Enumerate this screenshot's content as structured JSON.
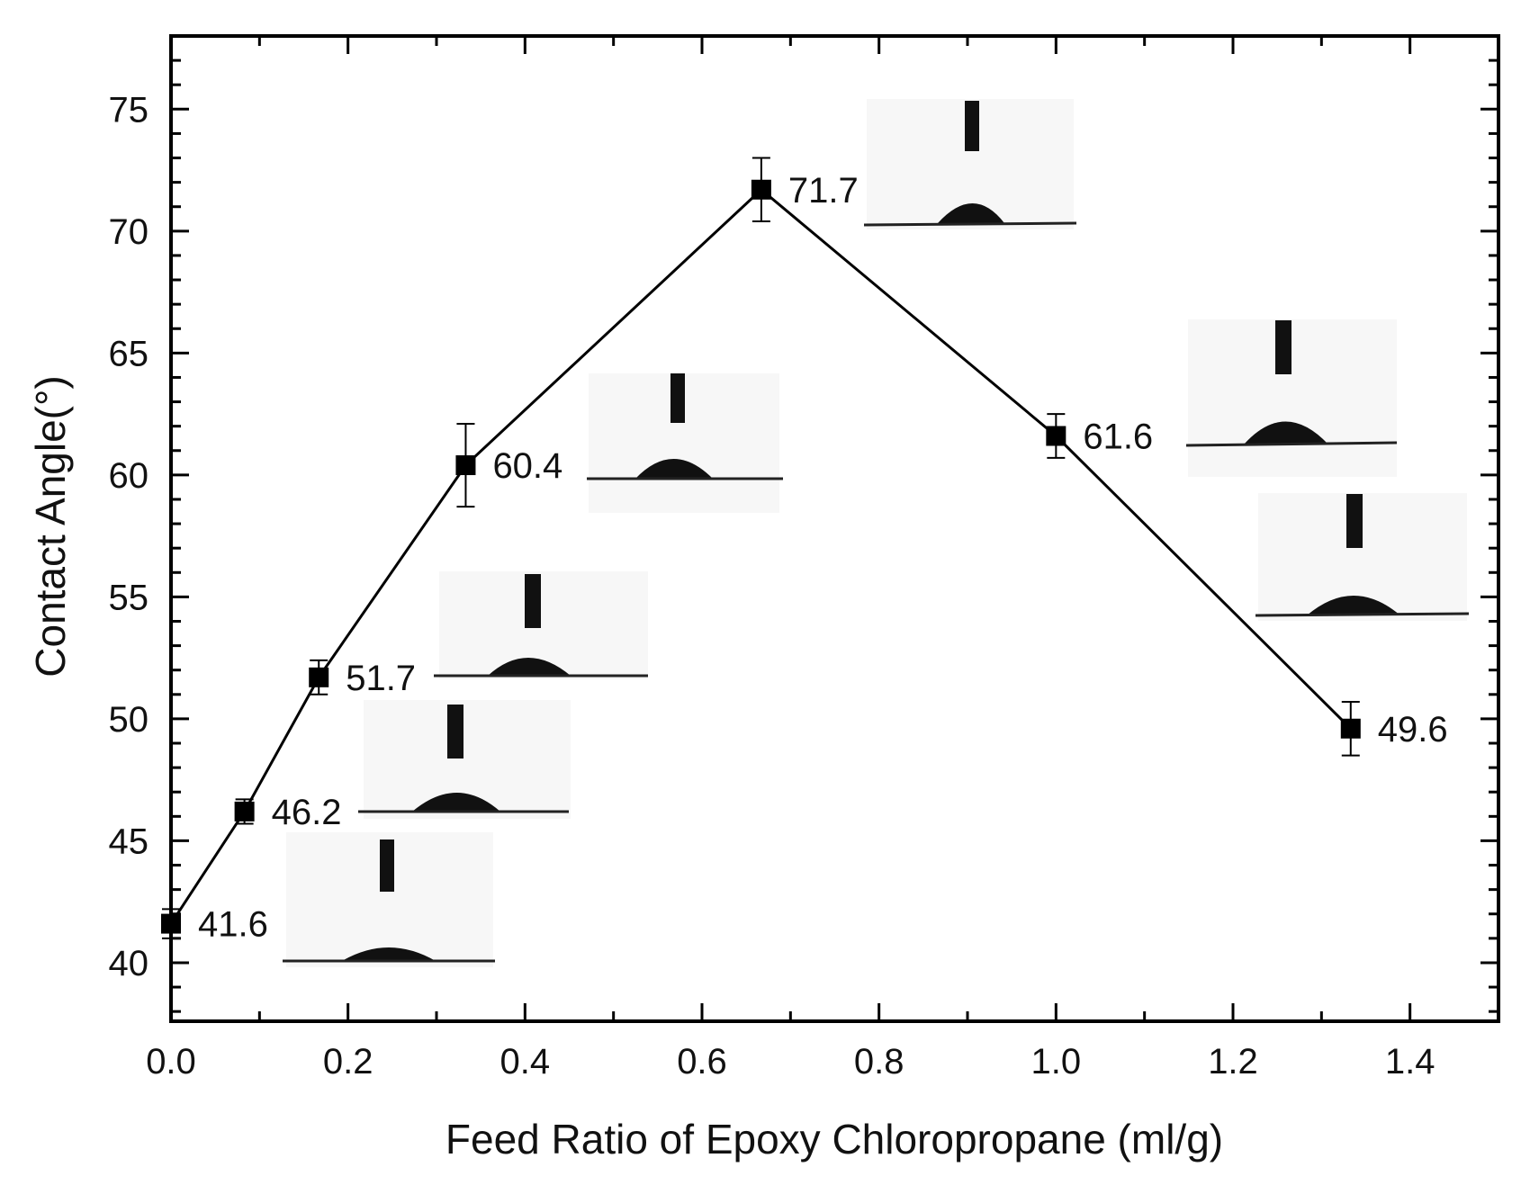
{
  "chart_data": {
    "type": "line",
    "title": "",
    "xlabel": "Feed Ratio of Epoxy Chloropropane (ml/g)",
    "ylabel": "Contact Angle(°)",
    "xlim": [
      0.0,
      1.5
    ],
    "ylim": [
      37.6,
      78.0
    ],
    "xticks": [
      0.0,
      0.2,
      0.4,
      0.6,
      0.8,
      1.0,
      1.2,
      1.4
    ],
    "xtick_labels": [
      "0.0",
      "0.2",
      "0.4",
      "0.6",
      "0.8",
      "1.0",
      "1.2",
      "1.4"
    ],
    "yticks": [
      40,
      45,
      50,
      55,
      60,
      65,
      70,
      75
    ],
    "ytick_labels": [
      "40",
      "45",
      "50",
      "55",
      "60",
      "65",
      "70",
      "75"
    ],
    "grid": false,
    "series": [
      {
        "name": "Contact Angle",
        "marker": "square",
        "color": "#000000",
        "x": [
          0.0,
          0.083,
          0.167,
          0.333,
          0.667,
          1.0,
          1.333
        ],
        "y": [
          41.6,
          46.2,
          51.7,
          60.4,
          71.7,
          61.6,
          49.6
        ],
        "error": [
          0.6,
          0.5,
          0.7,
          1.7,
          1.3,
          0.9,
          1.1
        ],
        "labels": [
          "41.6",
          "46.2",
          "51.7",
          "60.4",
          "71.7",
          "61.6",
          "49.6"
        ]
      }
    ],
    "insets": "droplet photographs"
  }
}
